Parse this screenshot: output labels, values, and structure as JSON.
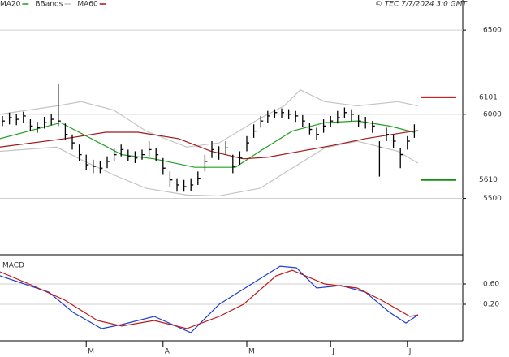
{
  "chart_data": [
    {
      "type": "ohlc",
      "source": "© TEC 7/7/2024 3:0 GMT",
      "categories": [
        null,
        null,
        null,
        null,
        null,
        null,
        null,
        null,
        null,
        null,
        null,
        null,
        "M",
        null,
        null,
        null,
        null,
        null,
        null,
        null,
        null,
        null,
        null,
        "A",
        null,
        null,
        null,
        null,
        null,
        null,
        null,
        null,
        null,
        null,
        null,
        "M",
        null,
        null,
        null,
        null,
        null,
        null,
        null,
        null,
        null,
        null,
        null,
        "J",
        null,
        null,
        null,
        null,
        null,
        null,
        null,
        null,
        null,
        null,
        "J",
        null
      ],
      "close": [
        5960,
        5980,
        5970,
        5990,
        5930,
        5920,
        5950,
        5970,
        5960,
        5880,
        5830,
        5760,
        5700,
        5690,
        5680,
        5720,
        5760,
        5790,
        5750,
        5740,
        5760,
        5790,
        5760,
        5680,
        5610,
        5580,
        5570,
        5580,
        5620,
        5720,
        5790,
        5770,
        5800,
        5690,
        5740,
        5830,
        5900,
        5960,
        5990,
        6010,
        6010,
        6000,
        5990,
        5960,
        5910,
        5880,
        5930,
        5960,
        5980,
        6010,
        6000,
        5960,
        5950,
        5930,
        5800,
        5880,
        5840,
        5760,
        5840,
        5900
      ],
      "high": [
        5990,
        6010,
        6000,
        6015,
        5970,
        5955,
        5985,
        6000,
        6180,
        5945,
        5880,
        5820,
        5760,
        5730,
        5720,
        5750,
        5800,
        5820,
        5790,
        5780,
        5790,
        5840,
        5800,
        5740,
        5660,
        5620,
        5610,
        5620,
        5660,
        5760,
        5840,
        5810,
        5840,
        5760,
        5780,
        5870,
        5940,
        5990,
        6020,
        6030,
        6035,
        6030,
        6020,
        5995,
        5950,
        5920,
        5970,
        5990,
        6020,
        6040,
        6030,
        5995,
        5985,
        5960,
        5840,
        5920,
        5880,
        5800,
        5870,
        5940
      ],
      "low": [
        5930,
        5940,
        5935,
        5950,
        5900,
        5890,
        5915,
        5935,
        5930,
        5850,
        5790,
        5720,
        5670,
        5650,
        5650,
        5680,
        5720,
        5750,
        5720,
        5710,
        5730,
        5750,
        5720,
        5640,
        5570,
        5540,
        5540,
        5545,
        5580,
        5660,
        5740,
        5730,
        5760,
        5650,
        5700,
        5780,
        5860,
        5920,
        5950,
        5975,
        5980,
        5970,
        5955,
        5925,
        5880,
        5850,
        5890,
        5925,
        5945,
        5975,
        5960,
        5925,
        5915,
        5890,
        5630,
        5840,
        5800,
        5680,
        5790,
        5860
      ],
      "bar_color": "#000000",
      "series": [
        {
          "name": "MA20",
          "color": "#22a022",
          "x": [
            -0.35,
            8.37,
            17.09,
            21.74,
            27.56,
            29.88,
            33.37,
            36.86,
            41.51,
            46.16,
            50.81,
            55.47,
            58.95
          ],
          "values": [
            5855,
            5950,
            5760,
            5735,
            5685,
            5685,
            5685,
            5780,
            5900,
            5950,
            5960,
            5930,
            5893
          ]
        },
        {
          "name": "BBands",
          "color": "#c4c4c4",
          "x": [
            -0.35,
            7.79,
            11.28,
            15.93,
            20.58,
            26.4,
            31.05,
            36.86,
            40.35,
            42.67,
            46.16,
            50.81,
            56.63,
            59.53
          ],
          "values": [
            6000,
            6050,
            6075,
            6025,
            5900,
            5805,
            5830,
            5975,
            6050,
            6145,
            6075,
            6050,
            6075,
            6050
          ],
          "lower": [
            5780,
            5805,
            5730,
            5640,
            5560,
            5520,
            5515,
            5560,
            5650,
            5710,
            5800,
            5840,
            5780,
            5710
          ]
        },
        {
          "name": "MA60",
          "color": "#a01818",
          "x": [
            -0.35,
            8.95,
            14.77,
            19.42,
            25.23,
            29.88,
            34.53,
            38.02,
            42.67,
            47.33,
            51.98,
            57.79,
            59.53
          ],
          "values": [
            5805,
            5855,
            5893,
            5893,
            5855,
            5780,
            5735,
            5745,
            5780,
            5815,
            5855,
            5893,
            5903
          ]
        }
      ],
      "levels": [
        {
          "value": 6101,
          "color": "#cc0000"
        },
        {
          "value": 5610,
          "color": "#109010"
        }
      ],
      "xlim": [
        -0.35,
        65.93
      ],
      "ylim": [
        5165,
        6631
      ],
      "yticks": [
        5500,
        6000,
        6500
      ],
      "grid": true
    },
    {
      "type": "line",
      "title": "MACD",
      "xlim": [
        -0.35,
        65.93
      ],
      "ylim": [
        -0.52,
        1.144
      ],
      "yticks": [
        {
          "value": 0.2,
          "label": "0.20"
        },
        {
          "value": 0.6,
          "label": "0.60"
        }
      ],
      "grid": true,
      "series": [
        {
          "name": null,
          "color": "#1f3fd0",
          "x": [
            -0.35,
            6.63,
            10.12,
            14.19,
            17.09,
            21.74,
            26.98,
            31.05,
            35.7,
            39.77,
            42.09,
            45,
            48.49,
            51.98,
            55.47,
            57.79,
            59.53
          ],
          "values": [
            0.76,
            0.44,
            0.04,
            -0.28,
            -0.2,
            -0.04,
            -0.36,
            0.2,
            0.6,
            0.95,
            0.92,
            0.52,
            0.57,
            0.44,
            0.04,
            -0.17,
            -0.01
          ]
        },
        {
          "name": null,
          "color": "#c01818",
          "x": [
            -0.35,
            4.3,
            8.95,
            13.6,
            17.09,
            21.74,
            26.4,
            31.05,
            34.53,
            39.19,
            41.51,
            46.16,
            50.81,
            54.3,
            58.37,
            59.53
          ],
          "values": [
            0.84,
            0.57,
            0.28,
            -0.12,
            -0.23,
            -0.12,
            -0.28,
            -0.04,
            0.2,
            0.76,
            0.87,
            0.6,
            0.52,
            0.28,
            -0.04,
            -0.01
          ]
        }
      ]
    }
  ]
}
